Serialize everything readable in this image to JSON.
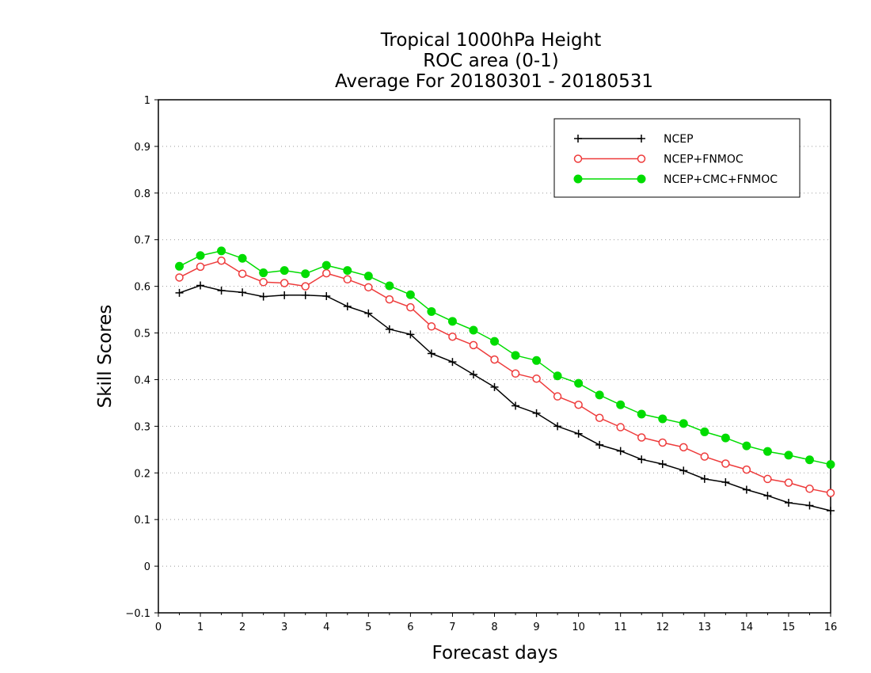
{
  "chart_data": {
    "type": "line",
    "title_lines": [
      "Tropical 1000hPa Height",
      "ROC area (0-1)",
      "Average For 20180301 - 20180531"
    ],
    "xlabel": "Forecast days",
    "ylabel": "Skill Scores",
    "xlim": [
      0,
      16
    ],
    "ylim": [
      -0.1,
      1
    ],
    "xticks": [
      "0",
      "1",
      "2",
      "3",
      "4",
      "5",
      "6",
      "7",
      "8",
      "9",
      "10",
      "11",
      "12",
      "13",
      "14",
      "15",
      "16"
    ],
    "yticks": [
      "-0.1",
      "0",
      "0.1",
      "0.2",
      "0.3",
      "0.4",
      "0.5",
      "0.6",
      "0.7",
      "0.8",
      "0.9",
      "1"
    ],
    "grid": true,
    "legend_position": "top-right",
    "x": [
      0.5,
      1.0,
      1.5,
      2.0,
      2.5,
      3.0,
      3.5,
      4.0,
      4.5,
      5.0,
      5.5,
      6.0,
      6.5,
      7.0,
      7.5,
      8.0,
      8.5,
      9.0,
      9.5,
      10.0,
      10.5,
      11.0,
      11.5,
      12.0,
      12.5,
      13.0,
      13.5,
      14.0,
      14.5,
      15.0,
      15.5,
      16.0
    ],
    "series": [
      {
        "name": "NCEP",
        "color": "#000000",
        "marker": "plus",
        "values": [
          0.586,
          0.602,
          0.591,
          0.587,
          0.578,
          0.581,
          0.581,
          0.579,
          0.557,
          0.542,
          0.508,
          0.497,
          0.456,
          0.438,
          0.411,
          0.384,
          0.344,
          0.328,
          0.3,
          0.284,
          0.26,
          0.247,
          0.229,
          0.219,
          0.205,
          0.187,
          0.18,
          0.164,
          0.151,
          0.136,
          0.13,
          0.119
        ]
      },
      {
        "name": "NCEP+FNMOC",
        "color": "#ee3b3b",
        "marker": "open-circle",
        "values": [
          0.619,
          0.642,
          0.655,
          0.627,
          0.609,
          0.607,
          0.6,
          0.628,
          0.615,
          0.598,
          0.572,
          0.555,
          0.514,
          0.492,
          0.474,
          0.443,
          0.413,
          0.402,
          0.364,
          0.346,
          0.318,
          0.298,
          0.276,
          0.265,
          0.255,
          0.235,
          0.22,
          0.207,
          0.187,
          0.179,
          0.166,
          0.157
        ]
      },
      {
        "name": "NCEP+CMC+FNMOC",
        "color": "#00dc00",
        "marker": "filled-circle",
        "values": [
          0.643,
          0.666,
          0.676,
          0.66,
          0.629,
          0.634,
          0.627,
          0.645,
          0.634,
          0.622,
          0.601,
          0.582,
          0.546,
          0.525,
          0.506,
          0.482,
          0.452,
          0.441,
          0.408,
          0.392,
          0.367,
          0.346,
          0.326,
          0.316,
          0.306,
          0.288,
          0.275,
          0.258,
          0.246,
          0.238,
          0.228,
          0.218
        ]
      }
    ]
  }
}
